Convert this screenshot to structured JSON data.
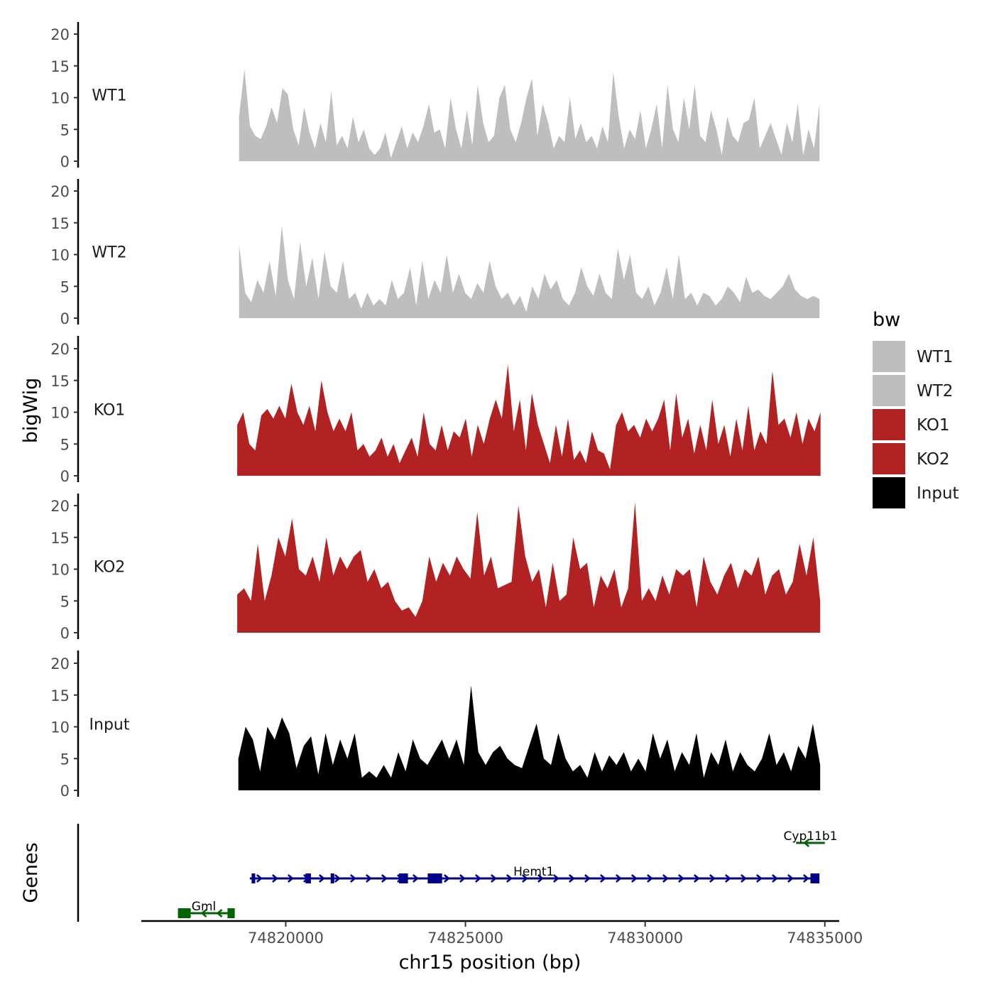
{
  "chart_data": {
    "type": "area",
    "y_axis_title": "bigWig",
    "genes_panel_title": "Genes",
    "x_axis_title": "chr15 position (bp)",
    "x_range": [
      74816000,
      74835400
    ],
    "x_ticks": [
      74820000,
      74825000,
      74830000,
      74835000
    ],
    "x_tick_labels": [
      "74820000",
      "74825000",
      "74830000",
      "74835000"
    ],
    "y_range": [
      0,
      21
    ],
    "y_ticks": [
      0,
      5,
      10,
      15,
      20
    ],
    "y_tick_labels": [
      "0",
      "5",
      "10",
      "15",
      "20"
    ],
    "legend": {
      "title": "bw",
      "position": "right",
      "entries": [
        {
          "label": "WT1",
          "color": "#bebebe"
        },
        {
          "label": "WT2",
          "color": "#bebebe"
        },
        {
          "label": "KO1",
          "color": "#b22222"
        },
        {
          "label": "KO2",
          "color": "#b22222"
        },
        {
          "label": "Input",
          "color": "#000000"
        }
      ]
    },
    "series": [
      {
        "name": "WT1",
        "color": "#bebebe",
        "x_start": 74818700,
        "x_end": 74834850,
        "values": [
          7,
          14.5,
          5.5,
          4,
          3.5,
          5.5,
          8.5,
          6,
          11.5,
          10.5,
          5,
          2.5,
          8.5,
          4.5,
          2,
          6,
          3,
          11,
          2.5,
          4,
          2,
          7,
          3,
          5,
          2,
          1,
          2,
          4.5,
          0.5,
          3,
          5.5,
          2,
          4.5,
          3,
          5.5,
          9,
          4.5,
          5,
          2,
          10,
          5,
          2,
          8,
          2.5,
          12,
          6,
          3,
          4,
          10,
          12,
          5,
          3,
          6,
          10,
          13,
          4,
          9,
          6,
          2,
          4,
          3,
          10,
          3.5,
          6,
          3,
          4,
          2,
          5.5,
          3,
          14,
          7,
          2,
          5,
          3.5,
          8,
          2,
          5,
          9,
          2,
          12,
          5,
          3,
          10,
          5,
          12,
          4,
          3,
          8,
          5,
          1,
          7,
          4,
          3,
          6,
          6.5,
          10,
          2,
          4,
          6,
          3.5,
          1,
          6,
          3,
          9,
          1,
          5,
          2,
          9
        ]
      },
      {
        "name": "WT2",
        "color": "#bebebe",
        "x_start": 74818700,
        "x_end": 74834850,
        "values": [
          11.5,
          4,
          2.5,
          6,
          4,
          9,
          3.5,
          14.5,
          6,
          3,
          12,
          5,
          9.5,
          3,
          10.5,
          5,
          4,
          9,
          3,
          4,
          1.5,
          4,
          2,
          3,
          2,
          6,
          3,
          4,
          8,
          2,
          9,
          3,
          6,
          4,
          10,
          4,
          7,
          4,
          3,
          5.5,
          4,
          9,
          5,
          3,
          4,
          2,
          3.5,
          1,
          5,
          3,
          7,
          4.5,
          6,
          3,
          2,
          4,
          8,
          5,
          3.5,
          7,
          4,
          3,
          11,
          6,
          10,
          4,
          3,
          5,
          2,
          4,
          8,
          3,
          10,
          3,
          4,
          2,
          4,
          3.5,
          2,
          3,
          5,
          4,
          2.5,
          6.5,
          4,
          4.5,
          3.5,
          3,
          4,
          5,
          7,
          4.5,
          3.5,
          3,
          3.5,
          3
        ]
      },
      {
        "name": "KO1",
        "color": "#b22222",
        "x_start": 74818650,
        "x_end": 74834880,
        "values": [
          8,
          10,
          5,
          4,
          9.5,
          10.5,
          9,
          11,
          9,
          14.5,
          10,
          8,
          11,
          7,
          15,
          10,
          7,
          9,
          7,
          10,
          4,
          5,
          3,
          4,
          6,
          3,
          5,
          2,
          4,
          6,
          3,
          10,
          5,
          4,
          8,
          4,
          7,
          6,
          9,
          3,
          8,
          5,
          9,
          12,
          9,
          17.5,
          7,
          12,
          4,
          13,
          8,
          5,
          2,
          8,
          3,
          9,
          2.5,
          4,
          2,
          7,
          4,
          3.5,
          1,
          8,
          10,
          7,
          8,
          6,
          9,
          7,
          9,
          12,
          4,
          13,
          6,
          9,
          3.5,
          8,
          4,
          12,
          5,
          8,
          3,
          9,
          4,
          11,
          4,
          7,
          5,
          16.5,
          8,
          9,
          6,
          10,
          5,
          9,
          7,
          10
        ]
      },
      {
        "name": "KO2",
        "color": "#b22222",
        "x_start": 74818650,
        "x_end": 74834870,
        "values": [
          6,
          7,
          5,
          14,
          5,
          9,
          15,
          12,
          18,
          10,
          9,
          12,
          8,
          15,
          9,
          12,
          10,
          12,
          13,
          8,
          10,
          7,
          8,
          5,
          3.5,
          4,
          2.5,
          5,
          12,
          8,
          11,
          9,
          12,
          10,
          8.5,
          19,
          9,
          12,
          7,
          7.5,
          8,
          20,
          12,
          8,
          10,
          4,
          11,
          5,
          6,
          15,
          10,
          11,
          4,
          9,
          7,
          10,
          4,
          7,
          20.5,
          5,
          7,
          5,
          9,
          6,
          10,
          9,
          10,
          4,
          12,
          8,
          6,
          9,
          11,
          7,
          10,
          9,
          12,
          6,
          9,
          10,
          6,
          8,
          14,
          9,
          15,
          5
        ]
      },
      {
        "name": "Input",
        "color": "#000000",
        "x_start": 74818680,
        "x_end": 74834870,
        "values": [
          5,
          10,
          8,
          3,
          10,
          8,
          11.5,
          9,
          3.5,
          7,
          8.5,
          2.5,
          9,
          4,
          8,
          5,
          9,
          2,
          3,
          2,
          4,
          2,
          6,
          3,
          8,
          5,
          4,
          6,
          8,
          5,
          8,
          4,
          16.5,
          6,
          4,
          6,
          7,
          5,
          4,
          3.5,
          7,
          10.5,
          5,
          4,
          9,
          5,
          3,
          4,
          2,
          6,
          3,
          5.5,
          4,
          6,
          3,
          5,
          3,
          9,
          5,
          8,
          3,
          6,
          4,
          9,
          2,
          6,
          4,
          8,
          3,
          6,
          4,
          3,
          5,
          9,
          4,
          6,
          3,
          7,
          5,
          10.5,
          4
        ]
      }
    ],
    "genes": [
      {
        "name": "Cyp11b1",
        "strand": "-",
        "start": 74834200,
        "end": 74835000,
        "color": "#006400",
        "row": 1,
        "exons": []
      },
      {
        "name": "Hemt1",
        "strand": "+",
        "start": 74819000,
        "end": 74834800,
        "color": "#00008b",
        "row": 2,
        "exons": [
          [
            74819050,
            74819150
          ],
          [
            74820550,
            74820700
          ],
          [
            74821250,
            74821350
          ],
          [
            74823150,
            74823400
          ],
          [
            74823950,
            74824350
          ],
          [
            74834600,
            74834850
          ]
        ]
      },
      {
        "name": "Gml",
        "strand": "-",
        "start": 74817000,
        "end": 74818580,
        "color": "#006400",
        "row": 3,
        "exons": [
          [
            74817000,
            74817350
          ],
          [
            74818380,
            74818580
          ]
        ]
      }
    ]
  }
}
